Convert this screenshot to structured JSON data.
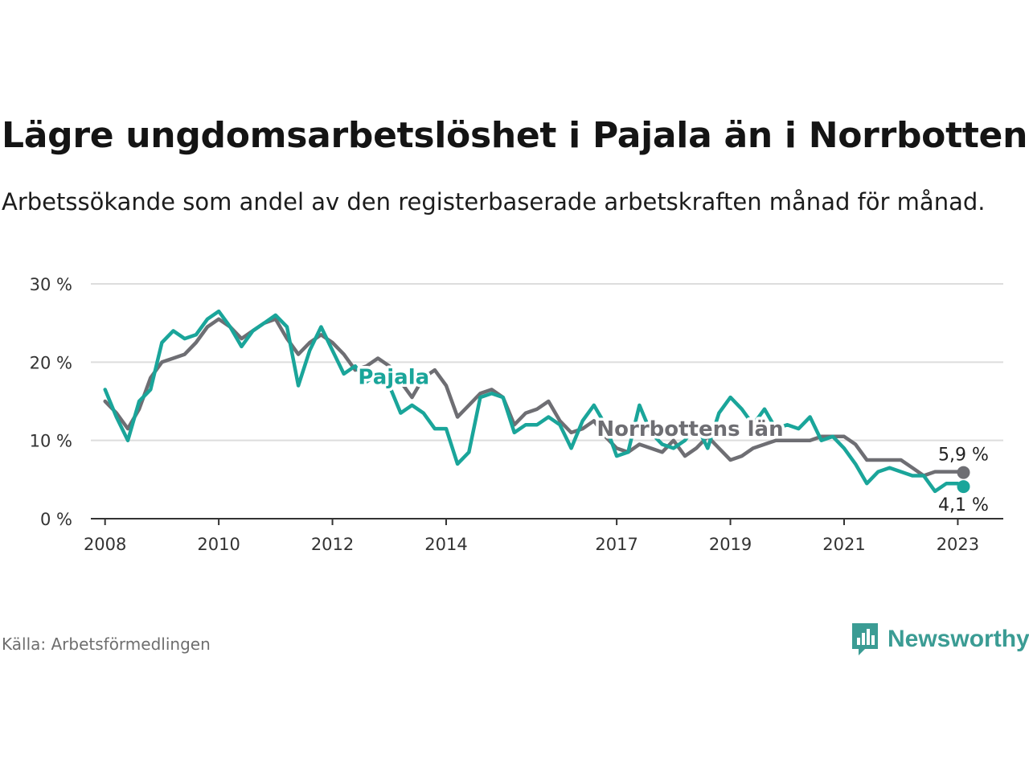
{
  "title": "Lägre ungdomsarbetslöshet i Pajala än i Norrbotten",
  "subtitle": "Arbetssökande som andel av den registerbaserade arbetskraften månad för månad.",
  "source": "Källa: Arbetsförmedlingen",
  "brand": {
    "name": "Newsworthy",
    "icon": "newsworthy-logo-icon"
  },
  "colors": {
    "pajala": "#1aa59a",
    "norrbotten": "#6e6e73",
    "grid": "#dddddd",
    "axis": "#333333"
  },
  "chart_data": {
    "type": "line",
    "title": "Lägre ungdomsarbetslöshet i Pajala än i Norrbotten",
    "xlabel": "",
    "ylabel": "",
    "xlim": [
      2007.75,
      2023.8
    ],
    "ylim": [
      0,
      30
    ],
    "yticks": [
      0,
      10,
      20,
      30
    ],
    "ytick_labels": [
      "0 %",
      "10 %",
      "20 %",
      "30 %"
    ],
    "xticks": [
      2008,
      2010,
      2012,
      2014,
      2017,
      2019,
      2021,
      2023
    ],
    "xtick_labels": [
      "2008",
      "2010",
      "2012",
      "2014",
      "2017",
      "2019",
      "2021",
      "2023"
    ],
    "grid": true,
    "series": [
      {
        "name": "Norrbottens län",
        "key": "norrbotten",
        "label": "Norrbottens län",
        "end_label": "5,9 %",
        "x": [
          2008.0,
          2008.2,
          2008.4,
          2008.6,
          2008.8,
          2009.0,
          2009.2,
          2009.4,
          2009.6,
          2009.8,
          2010.0,
          2010.2,
          2010.4,
          2010.6,
          2010.8,
          2011.0,
          2011.2,
          2011.4,
          2011.6,
          2011.8,
          2012.0,
          2012.2,
          2012.4,
          2012.6,
          2012.8,
          2013.0,
          2013.2,
          2013.4,
          2013.6,
          2013.8,
          2014.0,
          2014.2,
          2014.4,
          2014.6,
          2014.8,
          2015.0,
          2015.2,
          2015.4,
          2015.6,
          2015.8,
          2016.0,
          2016.2,
          2016.4,
          2016.6,
          2016.8,
          2017.0,
          2017.2,
          2017.4,
          2017.6,
          2017.8,
          2018.0,
          2018.2,
          2018.4,
          2018.6,
          2018.8,
          2019.0,
          2019.2,
          2019.4,
          2019.6,
          2019.8,
          2020.0,
          2020.2,
          2020.4,
          2020.6,
          2020.8,
          2021.0,
          2021.2,
          2021.4,
          2021.6,
          2021.8,
          2022.0,
          2022.2,
          2022.4,
          2022.6,
          2022.8,
          2023.0,
          2023.1
        ],
        "values": [
          15.0,
          13.5,
          11.5,
          14.0,
          18.0,
          20.0,
          20.5,
          21.0,
          22.5,
          24.5,
          25.5,
          24.5,
          23.0,
          24.0,
          25.0,
          25.5,
          23.0,
          21.0,
          22.5,
          23.5,
          22.5,
          21.0,
          19.0,
          19.5,
          20.5,
          19.5,
          17.5,
          15.5,
          18.0,
          19.0,
          17.0,
          13.0,
          14.5,
          16.0,
          16.5,
          15.5,
          12.0,
          13.5,
          14.0,
          15.0,
          12.5,
          11.0,
          11.5,
          12.5,
          10.5,
          9.0,
          8.5,
          9.5,
          9.0,
          8.5,
          10.0,
          8.0,
          9.0,
          10.5,
          9.0,
          7.5,
          8.0,
          9.0,
          9.5,
          10.0,
          10.0,
          10.0,
          10.0,
          10.5,
          10.5,
          10.5,
          9.5,
          7.5,
          7.5,
          7.5,
          7.5,
          6.5,
          5.5,
          6.0,
          6.0,
          6.0,
          5.9
        ]
      },
      {
        "name": "Pajala",
        "key": "pajala",
        "label": "Pajala",
        "end_label": "4,1 %",
        "x": [
          2008.0,
          2008.2,
          2008.4,
          2008.6,
          2008.8,
          2009.0,
          2009.2,
          2009.4,
          2009.6,
          2009.8,
          2010.0,
          2010.2,
          2010.4,
          2010.6,
          2010.8,
          2011.0,
          2011.2,
          2011.4,
          2011.6,
          2011.8,
          2012.0,
          2012.2,
          2012.4,
          2012.6,
          2012.8,
          2013.0,
          2013.2,
          2013.4,
          2013.6,
          2013.8,
          2014.0,
          2014.2,
          2014.4,
          2014.6,
          2014.8,
          2015.0,
          2015.2,
          2015.4,
          2015.6,
          2015.8,
          2016.0,
          2016.2,
          2016.4,
          2016.6,
          2016.8,
          2017.0,
          2017.2,
          2017.4,
          2017.6,
          2017.8,
          2018.0,
          2018.2,
          2018.4,
          2018.6,
          2018.8,
          2019.0,
          2019.2,
          2019.4,
          2019.6,
          2019.8,
          2020.0,
          2020.2,
          2020.4,
          2020.6,
          2020.8,
          2021.0,
          2021.2,
          2021.4,
          2021.6,
          2021.8,
          2022.0,
          2022.2,
          2022.4,
          2022.6,
          2022.8,
          2023.0,
          2023.1
        ],
        "values": [
          16.5,
          13.0,
          10.0,
          15.0,
          16.5,
          22.5,
          24.0,
          23.0,
          23.5,
          25.5,
          26.5,
          24.5,
          22.0,
          24.0,
          25.0,
          26.0,
          24.5,
          17.0,
          21.5,
          24.5,
          21.5,
          18.5,
          19.5,
          17.5,
          18.5,
          17.0,
          13.5,
          14.5,
          13.5,
          11.5,
          11.5,
          7.0,
          8.5,
          15.5,
          16.0,
          15.5,
          11.0,
          12.0,
          12.0,
          13.0,
          12.0,
          9.0,
          12.5,
          14.5,
          12.0,
          8.0,
          8.5,
          14.5,
          11.0,
          9.5,
          9.0,
          10.0,
          12.0,
          9.0,
          13.5,
          15.5,
          14.0,
          12.0,
          14.0,
          11.5,
          12.0,
          11.5,
          13.0,
          10.0,
          10.5,
          9.0,
          7.0,
          4.5,
          6.0,
          6.5,
          6.0,
          5.5,
          5.5,
          3.5,
          4.5,
          4.5,
          4.1
        ]
      }
    ]
  }
}
